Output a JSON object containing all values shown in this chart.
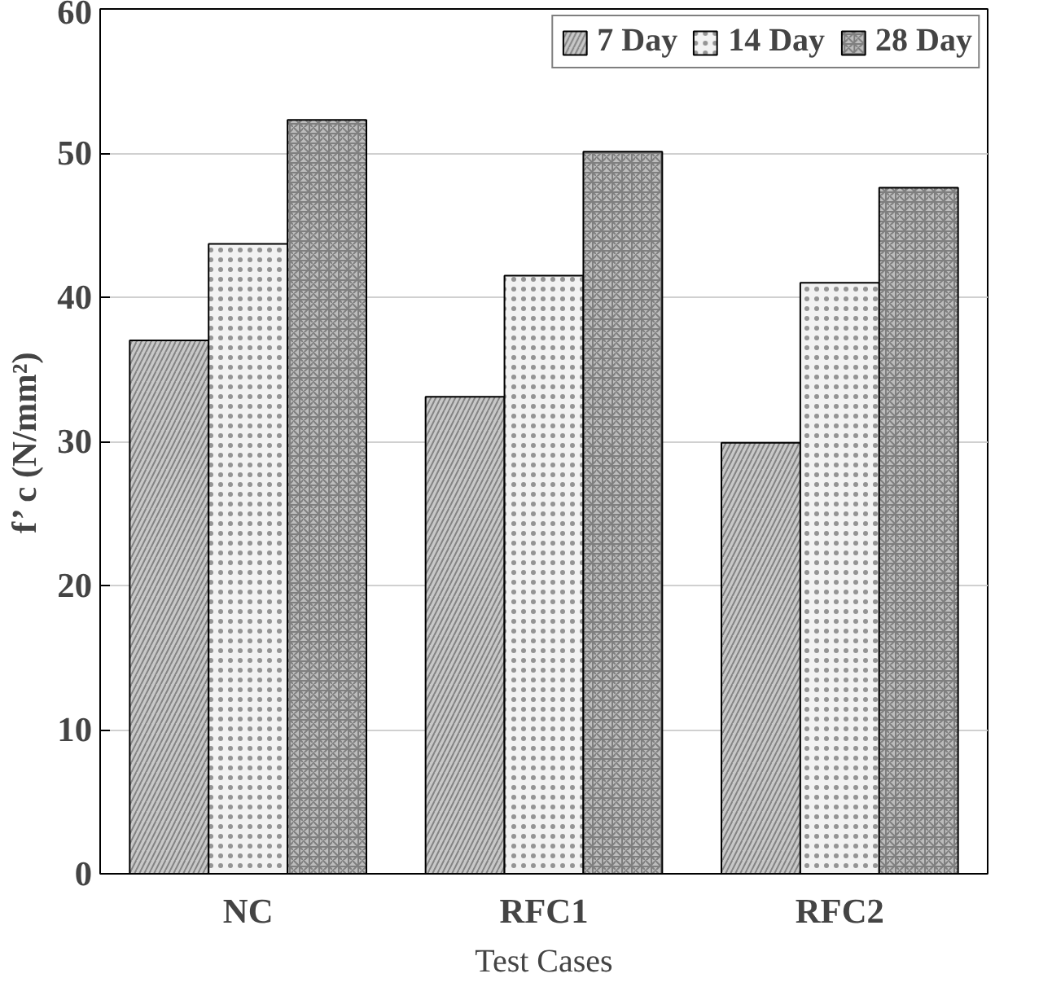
{
  "chart_data": {
    "type": "bar",
    "xlabel": "Test Cases",
    "ylabel": "f’ c (N/mm²)",
    "categories": [
      "NC",
      "RFC1",
      "RFC2"
    ],
    "series": [
      {
        "name": "7 Day",
        "color": "#c8c8c8",
        "values": [
          37.0,
          33.1,
          29.9
        ]
      },
      {
        "name": "14 Day",
        "color": "#f2f2f2",
        "values": [
          43.7,
          41.5,
          41.0
        ]
      },
      {
        "name": "28 Day",
        "color": "#bdbdbd",
        "values": [
          52.3,
          50.1,
          47.6
        ]
      }
    ],
    "ylim": [
      0,
      60
    ],
    "yticks": [
      0,
      10,
      20,
      30,
      40,
      50,
      60
    ],
    "grid": "y",
    "legend": "top right"
  }
}
